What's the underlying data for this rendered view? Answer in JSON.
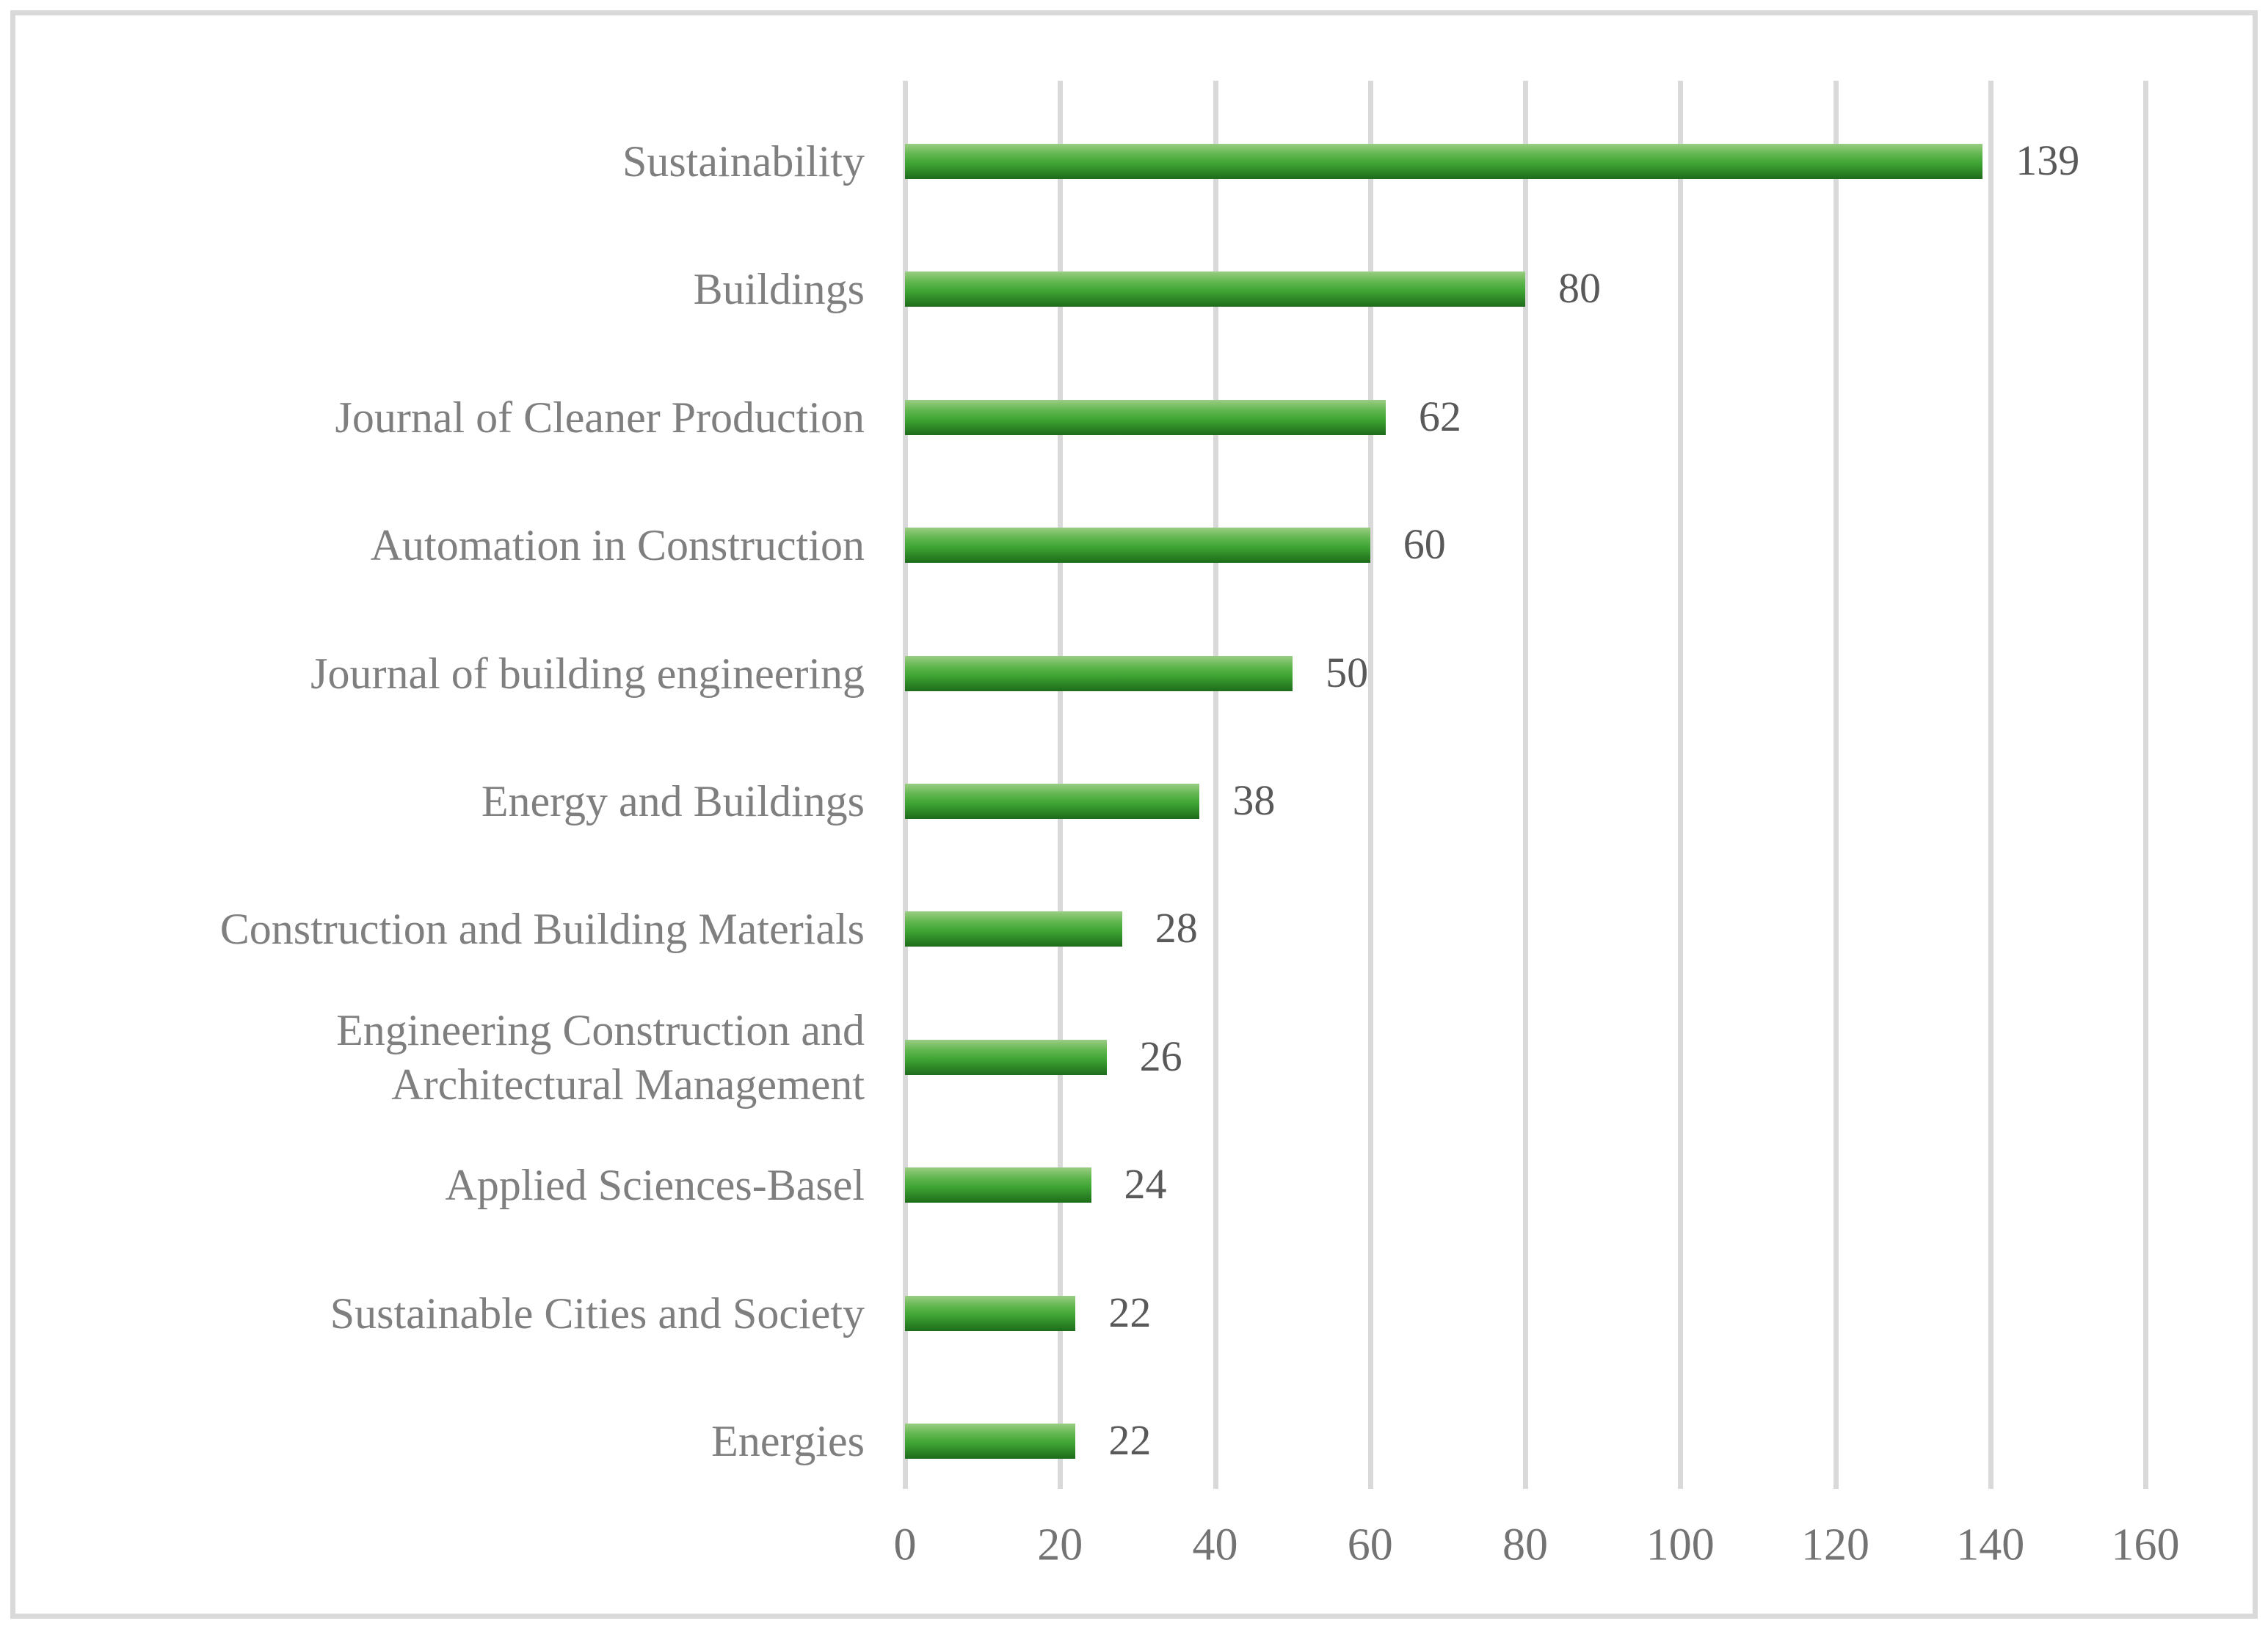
{
  "chart_data": {
    "type": "bar",
    "orientation": "horizontal",
    "title": "",
    "xlabel": "",
    "ylabel": "",
    "categories": [
      "Sustainability",
      "Buildings",
      "Journal of Cleaner Production",
      "Automation in Construction",
      "Journal of building engineering",
      "Energy and Buildings",
      "Construction and Building Materials",
      "Engineering Construction and\nArchitectural Management",
      "Applied Sciences-Basel",
      "Sustainable Cities and Society",
      "Energies"
    ],
    "values": [
      139,
      80,
      62,
      60,
      50,
      38,
      28,
      26,
      24,
      22,
      22
    ],
    "data_labels_shown": true,
    "xlim": [
      0,
      160
    ],
    "xticks": [
      0,
      20,
      40,
      60,
      80,
      100,
      120,
      140,
      160
    ],
    "grid": "vertical-major",
    "legend": "none",
    "colors": {
      "bar_gradient_top": "#9acd83",
      "bar_gradient_mid": "#3fa534",
      "bar_gradient_bottom": "#1e6b1a",
      "gridline": "#d9d9d9",
      "chart_border": "#d9d9d9",
      "category_label": "#7f7f7f",
      "value_label": "#595959",
      "axis_tick_label": "#737373",
      "background": "#ffffff"
    }
  }
}
